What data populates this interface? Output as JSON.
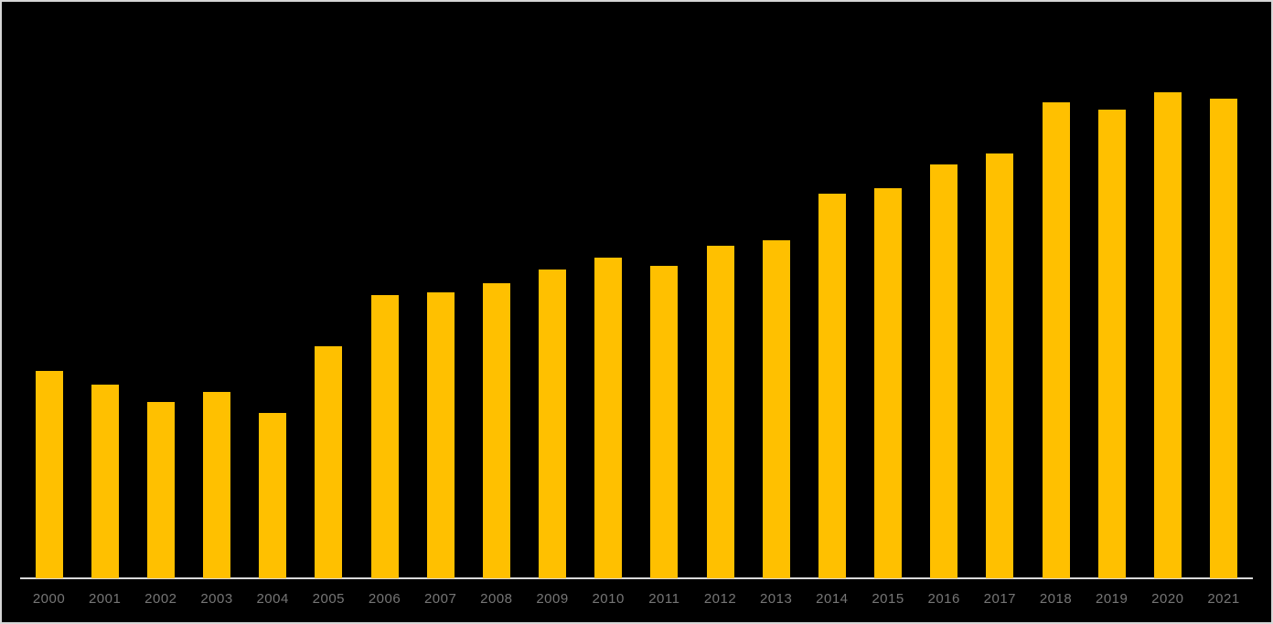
{
  "frame": {
    "background_color": "#000000",
    "border_color": "#d6d6d6"
  },
  "chart_data": {
    "type": "bar",
    "title": "",
    "xlabel": "",
    "ylabel": "",
    "categories": [
      "2000",
      "2001",
      "2002",
      "2003",
      "2004",
      "2005",
      "2006",
      "2007",
      "2008",
      "2009",
      "2010",
      "2011",
      "2012",
      "2013",
      "2014",
      "2015",
      "2016",
      "2017",
      "2018",
      "2019",
      "2020",
      "2021"
    ],
    "values": [
      227,
      212,
      193,
      204,
      181,
      254,
      310,
      313,
      323,
      338,
      351,
      342,
      364,
      370,
      421,
      427,
      453,
      465,
      521,
      513,
      532,
      525
    ],
    "value_scale_note": "relative heights (no y-axis ticks, gridlines or data labels visible in chart)",
    "ylim": [
      0,
      560
    ],
    "grid": false,
    "legend": false,
    "bar_color": "#ffc000",
    "plot_background": "#000000",
    "axis_line_color": "#d9d9d9",
    "tick_label_color": "#767676"
  }
}
